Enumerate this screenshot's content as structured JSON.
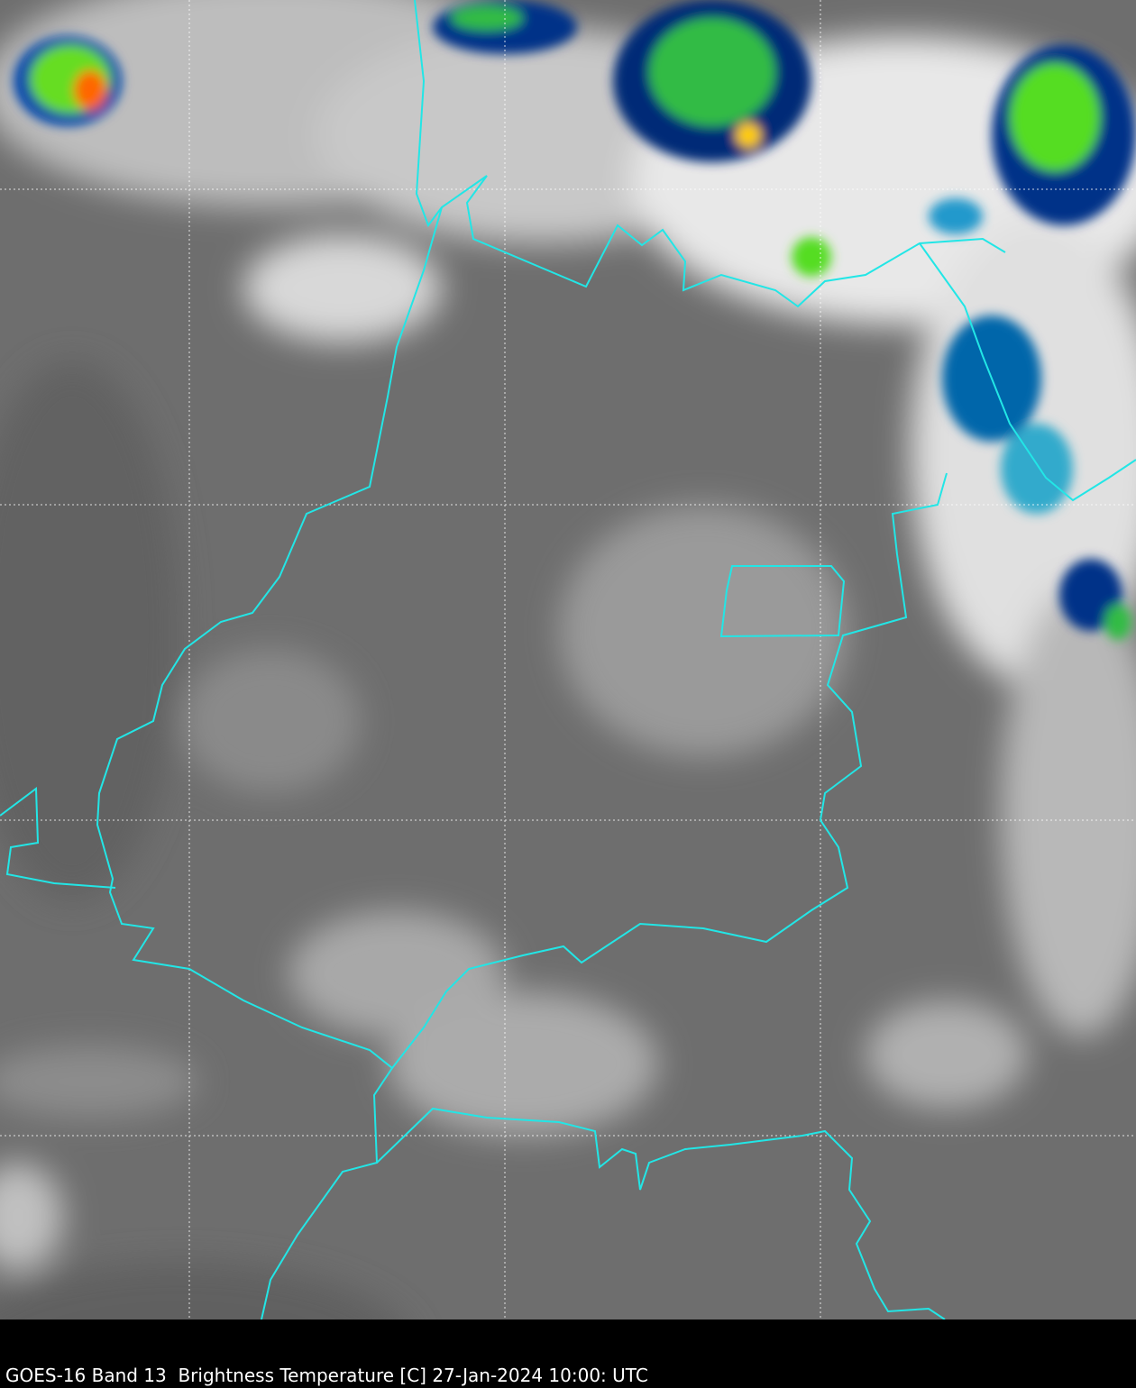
{
  "caption": "GOES-16 Band 13  Brightness Temperature [C] 27-Jan-2024 10:00: UTC",
  "colors": {
    "background_gray": "#707070",
    "border": "#22e6e6",
    "grid": "#ffffff",
    "cold_cloud_scale": [
      "#ffffff",
      "#33ccee",
      "#0044aa",
      "#001a55",
      "#22aa44",
      "#88ee22",
      "#ffee00",
      "#ff5500"
    ]
  },
  "map": {
    "grid_style": "dotted",
    "grid_lines_visible": true
  }
}
